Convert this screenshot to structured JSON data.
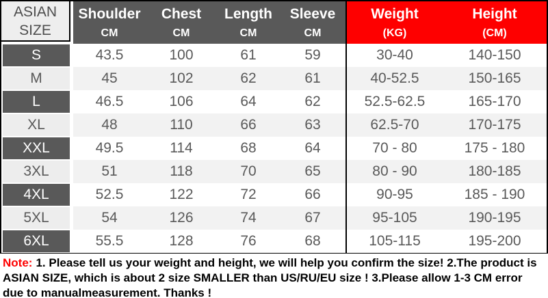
{
  "chart_data": {
    "type": "table",
    "corner_header": [
      "ASIAN",
      "SIZE"
    ],
    "columns": [
      {
        "label": "Shoulder",
        "unit": "CM",
        "theme": "gray"
      },
      {
        "label": "Chest",
        "unit": "CM",
        "theme": "gray"
      },
      {
        "label": "Length",
        "unit": "CM",
        "theme": "gray"
      },
      {
        "label": "Sleeve",
        "unit": "CM",
        "theme": "gray"
      },
      {
        "label": "Weight",
        "unit": "(KG)",
        "theme": "red"
      },
      {
        "label": "Height",
        "unit": "(CM)",
        "theme": "red"
      }
    ],
    "rows": [
      {
        "size": "S",
        "shoulder": "43.5",
        "chest": "100",
        "length": "61",
        "sleeve": "59",
        "weight": "30-40",
        "height": "140-150"
      },
      {
        "size": "M",
        "shoulder": "45",
        "chest": "102",
        "length": "62",
        "sleeve": "61",
        "weight": "40-52.5",
        "height": "150-165"
      },
      {
        "size": "L",
        "shoulder": "46.5",
        "chest": "106",
        "length": "64",
        "sleeve": "62",
        "weight": "52.5-62.5",
        "height": "165-170"
      },
      {
        "size": "XL",
        "shoulder": "48",
        "chest": "110",
        "length": "66",
        "sleeve": "63",
        "weight": "62.5-70",
        "height": "170-175"
      },
      {
        "size": "XXL",
        "shoulder": "49.5",
        "chest": "114",
        "length": "68",
        "sleeve": "64",
        "weight": "70 - 80",
        "height": "175 - 180"
      },
      {
        "size": "3XL",
        "shoulder": "51",
        "chest": "118",
        "length": "70",
        "sleeve": "65",
        "weight": "80 - 90",
        "height": "180-185"
      },
      {
        "size": "4XL",
        "shoulder": "52.5",
        "chest": "122",
        "length": "72",
        "sleeve": "66",
        "weight": "90-95",
        "height": "185 - 190"
      },
      {
        "size": "5XL",
        "shoulder": "54",
        "chest": "126",
        "length": "74",
        "sleeve": "67",
        "weight": "95-105",
        "height": "190-195"
      },
      {
        "size": "6XL",
        "shoulder": "55.5",
        "chest": "128",
        "length": "76",
        "sleeve": "68",
        "weight": "105-115",
        "height": "195-200"
      }
    ]
  },
  "note": {
    "prefix": "Note:",
    "text": "1. Please tell us your weight and height, we will help you confirm the size!  2.The product is ASIAN SIZE, which is about 2 size SMALLER than US/RU/EU size ! 3.Please allow 1-3 CM error due to manualmeasurement.  Thanks !"
  },
  "colors": {
    "header_gray": "#595959",
    "header_red": "#fe0000",
    "corner_bg": "#eeeeee",
    "row_alt": "#f2f2f2",
    "data_text": "#595959",
    "note_red": "#fe0000",
    "border_black": "#000000"
  }
}
